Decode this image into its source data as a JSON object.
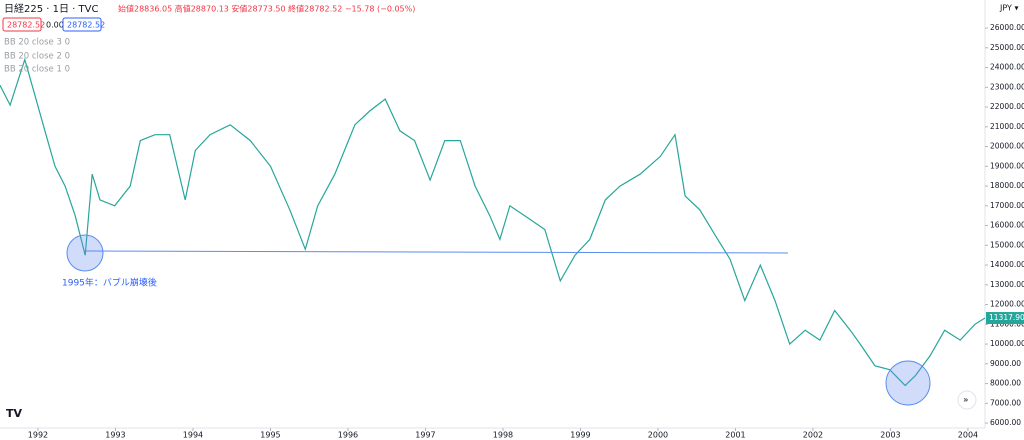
{
  "header": {
    "symbol": "日経225 · 1日 · TVC",
    "ohlc": "始値28836.05 高値28870.13 安値28773.50 終値28782.52 −15.78 (−0.05%)",
    "box1": "28782.52",
    "box2": "0.00",
    "box3": "28782.52"
  },
  "indicators": [
    "BB 20 close 3 0",
    "BB 20 close 2 0",
    "BB 20 close 1 0"
  ],
  "currency": "JPY ▾",
  "annotation": "1995年：バブル崩壊後",
  "price_badge": {
    "value": 11317.9,
    "label": "11317.90"
  },
  "chart_data": {
    "type": "line",
    "color": "#26a69a",
    "x": [
      1991.51,
      1991.64,
      1991.83,
      1991.96,
      1992.09,
      1992.22,
      1992.35,
      1992.48,
      1992.61,
      1992.7,
      1992.8,
      1992.99,
      1993.19,
      1993.32,
      1993.51,
      1993.7,
      1993.9,
      1994.03,
      1994.22,
      1994.48,
      1994.74,
      1995.0,
      1995.25,
      1995.45,
      1995.61,
      1995.83,
      1996.09,
      1996.28,
      1996.48,
      1996.67,
      1996.86,
      1997.06,
      1997.25,
      1997.45,
      1997.64,
      1997.83,
      1997.96,
      1998.09,
      1998.28,
      1998.54,
      1998.74,
      1998.93,
      1999.12,
      1999.32,
      1999.51,
      1999.77,
      2000.03,
      2000.22,
      2000.35,
      2000.54,
      2000.74,
      2000.93,
      2001.12,
      2001.32,
      2001.51,
      2001.7,
      2001.9,
      2002.09,
      2002.28,
      2002.48,
      2002.61,
      2002.8,
      2002.99,
      2003.19,
      2003.32,
      2003.51,
      2003.7,
      2003.9,
      2004.09,
      2004.22
    ],
    "values": [
      23100,
      22100,
      24400,
      22600,
      20800,
      19000,
      18000,
      16500,
      14500,
      18600,
      17300,
      17000,
      18000,
      20300,
      20600,
      20600,
      17300,
      19800,
      20600,
      21100,
      20300,
      19000,
      16800,
      14800,
      17000,
      18600,
      21100,
      21800,
      22400,
      20800,
      20300,
      18300,
      20300,
      20300,
      18000,
      16500,
      15300,
      17000,
      16500,
      15800,
      13200,
      14500,
      15300,
      17300,
      18000,
      18600,
      19500,
      20600,
      17500,
      16800,
      15500,
      14300,
      12200,
      14000,
      12200,
      10000,
      10700,
      10200,
      11700,
      10700,
      10000,
      8900,
      8700,
      7900,
      8400,
      9400,
      10700,
      10200,
      11000,
      11317.9
    ],
    "xlim": [
      1991.51,
      2004.22
    ],
    "ylim": [
      5750,
      27420
    ],
    "xticks": [
      1992,
      1993,
      1994,
      1995,
      1996,
      1997,
      1998,
      1999,
      2000,
      2001,
      2002,
      2003,
      2004
    ],
    "yticks": [
      {
        "value": 6000,
        "label": "6000.00"
      },
      {
        "value": 7000,
        "label": "7000.00"
      },
      {
        "value": 8000,
        "label": "8000.00"
      },
      {
        "value": 9000,
        "label": "9000.00"
      },
      {
        "value": 10000,
        "label": "10000.00"
      },
      {
        "value": 11000,
        "label": "11000.00"
      },
      {
        "value": 12000,
        "label": "12000.00"
      },
      {
        "value": 13000,
        "label": "13000.00"
      },
      {
        "value": 14000,
        "label": "14000.00"
      },
      {
        "value": 15000,
        "label": "15000.00"
      },
      {
        "value": 16000,
        "label": "16000.00"
      },
      {
        "value": 17000,
        "label": "17000.00"
      },
      {
        "value": 18000,
        "label": "18000.00"
      },
      {
        "value": 19000,
        "label": "19000.00"
      },
      {
        "value": 20000,
        "label": "20000.00"
      },
      {
        "value": 21000,
        "label": "21000.00"
      },
      {
        "value": 22000,
        "label": "22000.00"
      },
      {
        "value": 23000,
        "label": "23000.00"
      },
      {
        "value": 24000,
        "label": "24000.00"
      },
      {
        "value": 25000,
        "label": "25000.00"
      },
      {
        "value": 26000,
        "label": "26000.00"
      }
    ],
    "grid": false
  }
}
